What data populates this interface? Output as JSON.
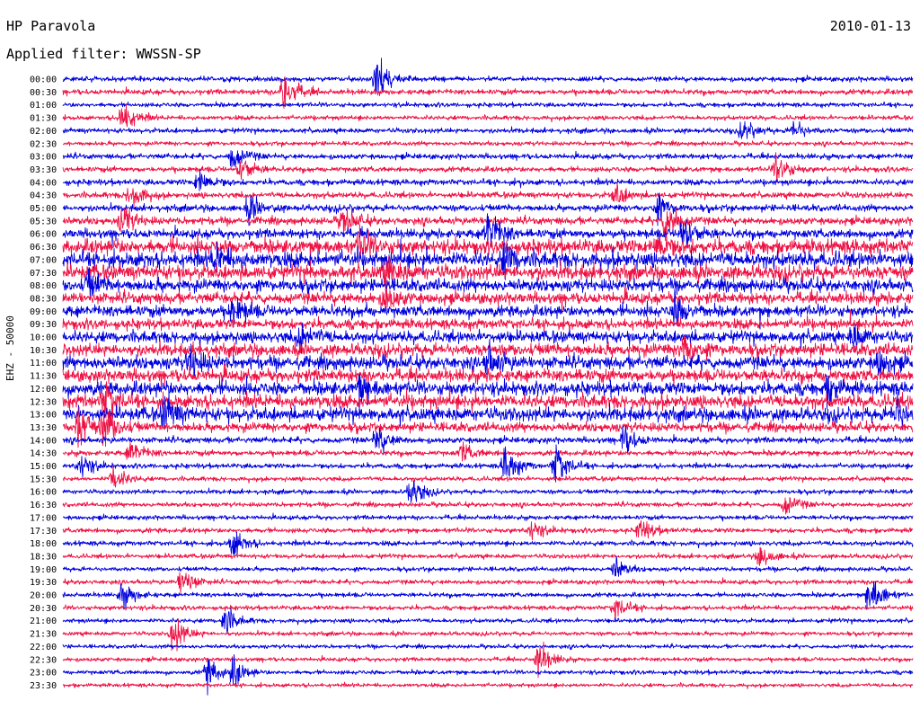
{
  "header": {
    "station": "HP Paravola",
    "date": "2010-01-13",
    "filter": "Applied filter: WWSSN-SP"
  },
  "axis": {
    "ylabel": "EHZ - 50000"
  },
  "colors": {
    "trace_even": "#0000dd",
    "trace_odd": "#ee1144",
    "label": "#000000"
  },
  "chart_data": {
    "type": "seismogram-helicorder",
    "station": "HP Paravola",
    "channel": "EHZ",
    "scale": "50000",
    "date": "2010-01-13",
    "filter": "WWSSN-SP",
    "row_interval_minutes": 30,
    "rows": [
      {
        "label": "00:00",
        "activity": 0.1,
        "events": [
          [
            0.37,
            2.2
          ]
        ]
      },
      {
        "label": "00:30",
        "activity": 0.12,
        "events": [
          [
            0.26,
            2.4
          ]
        ]
      },
      {
        "label": "01:00",
        "activity": 0.08,
        "events": []
      },
      {
        "label": "01:30",
        "activity": 0.08,
        "events": [
          [
            0.07,
            2.0
          ]
        ]
      },
      {
        "label": "02:00",
        "activity": 0.1,
        "events": [
          [
            0.8,
            1.2
          ],
          [
            0.86,
            1.0
          ]
        ]
      },
      {
        "label": "02:30",
        "activity": 0.07,
        "events": []
      },
      {
        "label": "03:00",
        "activity": 0.12,
        "events": [
          [
            0.2,
            1.5
          ]
        ]
      },
      {
        "label": "03:30",
        "activity": 0.12,
        "events": [
          [
            0.84,
            1.8
          ],
          [
            0.21,
            1.3
          ]
        ]
      },
      {
        "label": "04:00",
        "activity": 0.15,
        "events": [
          [
            0.16,
            1.5
          ]
        ]
      },
      {
        "label": "04:30",
        "activity": 0.15,
        "events": [
          [
            0.08,
            1.5
          ],
          [
            0.65,
            1.2
          ]
        ]
      },
      {
        "label": "05:00",
        "activity": 0.18,
        "events": [
          [
            0.22,
            1.4
          ],
          [
            0.7,
            1.3
          ]
        ]
      },
      {
        "label": "05:30",
        "activity": 0.22,
        "events": [
          [
            0.07,
            1.6
          ],
          [
            0.33,
            1.4
          ],
          [
            0.71,
            2.4
          ]
        ]
      },
      {
        "label": "06:00",
        "activity": 0.3,
        "events": [
          [
            0.5,
            2.8
          ],
          [
            0.73,
            1.8
          ]
        ]
      },
      {
        "label": "06:30",
        "activity": 0.55,
        "events": [
          [
            0.35,
            1.6
          ],
          [
            0.7,
            1.5
          ]
        ]
      },
      {
        "label": "07:00",
        "activity": 0.6,
        "events": [
          [
            0.18,
            1.4
          ],
          [
            0.52,
            1.6
          ]
        ]
      },
      {
        "label": "07:30",
        "activity": 0.55,
        "events": [
          [
            0.38,
            1.5
          ]
        ]
      },
      {
        "label": "08:00",
        "activity": 0.45,
        "events": [
          [
            0.03,
            1.3
          ]
        ]
      },
      {
        "label": "08:30",
        "activity": 0.4,
        "events": [
          [
            0.38,
            1.3
          ]
        ]
      },
      {
        "label": "09:00",
        "activity": 0.4,
        "events": [
          [
            0.2,
            1.6
          ],
          [
            0.72,
            1.8
          ]
        ]
      },
      {
        "label": "09:30",
        "activity": 0.35,
        "events": []
      },
      {
        "label": "10:00",
        "activity": 0.42,
        "events": [
          [
            0.28,
            1.5
          ],
          [
            0.93,
            1.3
          ]
        ]
      },
      {
        "label": "10:30",
        "activity": 0.45,
        "events": [
          [
            0.73,
            1.6
          ]
        ]
      },
      {
        "label": "11:00",
        "activity": 0.48,
        "events": [
          [
            0.15,
            1.6
          ],
          [
            0.5,
            1.6
          ],
          [
            0.96,
            1.4
          ]
        ]
      },
      {
        "label": "11:30",
        "activity": 0.45,
        "events": []
      },
      {
        "label": "12:00",
        "activity": 0.5,
        "events": [
          [
            0.35,
            1.5
          ],
          [
            0.9,
            1.4
          ]
        ]
      },
      {
        "label": "12:30",
        "activity": 0.5,
        "events": [
          [
            0.05,
            2.0
          ]
        ]
      },
      {
        "label": "13:00",
        "activity": 0.5,
        "events": [
          [
            0.12,
            1.8
          ],
          [
            0.98,
            1.6
          ]
        ]
      },
      {
        "label": "13:30",
        "activity": 0.3,
        "events": [
          [
            0.02,
            2.6
          ],
          [
            0.05,
            2.4
          ]
        ]
      },
      {
        "label": "14:00",
        "activity": 0.15,
        "events": [
          [
            0.37,
            1.6
          ],
          [
            0.66,
            1.6
          ]
        ]
      },
      {
        "label": "14:30",
        "activity": 0.12,
        "events": [
          [
            0.08,
            1.4
          ],
          [
            0.47,
            1.0
          ]
        ]
      },
      {
        "label": "15:00",
        "activity": 0.1,
        "events": [
          [
            0.02,
            1.5
          ],
          [
            0.52,
            2.2
          ],
          [
            0.58,
            2.4
          ]
        ]
      },
      {
        "label": "15:30",
        "activity": 0.08,
        "events": [
          [
            0.06,
            1.4
          ]
        ]
      },
      {
        "label": "16:00",
        "activity": 0.08,
        "events": [
          [
            0.41,
            1.5
          ]
        ]
      },
      {
        "label": "16:30",
        "activity": 0.08,
        "events": [
          [
            0.85,
            1.3
          ]
        ]
      },
      {
        "label": "17:00",
        "activity": 0.08,
        "events": []
      },
      {
        "label": "17:30",
        "activity": 0.1,
        "events": [
          [
            0.55,
            1.2
          ],
          [
            0.68,
            1.3
          ]
        ]
      },
      {
        "label": "18:00",
        "activity": 0.1,
        "events": [
          [
            0.2,
            1.5
          ]
        ]
      },
      {
        "label": "18:30",
        "activity": 0.08,
        "events": [
          [
            0.82,
            1.2
          ]
        ]
      },
      {
        "label": "19:00",
        "activity": 0.07,
        "events": [
          [
            0.65,
            1.1
          ]
        ]
      },
      {
        "label": "19:30",
        "activity": 0.08,
        "events": [
          [
            0.14,
            1.6
          ]
        ]
      },
      {
        "label": "20:00",
        "activity": 0.08,
        "events": [
          [
            0.07,
            1.4
          ],
          [
            0.95,
            2.4
          ]
        ]
      },
      {
        "label": "20:30",
        "activity": 0.08,
        "events": [
          [
            0.65,
            1.3
          ]
        ]
      },
      {
        "label": "21:00",
        "activity": 0.07,
        "events": [
          [
            0.19,
            1.6
          ]
        ]
      },
      {
        "label": "21:30",
        "activity": 0.06,
        "events": [
          [
            0.13,
            2.0
          ]
        ]
      },
      {
        "label": "22:00",
        "activity": 0.05,
        "events": []
      },
      {
        "label": "22:30",
        "activity": 0.06,
        "events": [
          [
            0.56,
            1.8
          ]
        ]
      },
      {
        "label": "23:00",
        "activity": 0.07,
        "events": [
          [
            0.17,
            1.8
          ],
          [
            0.2,
            1.4
          ]
        ]
      },
      {
        "label": "23:30",
        "activity": 0.05,
        "events": []
      }
    ]
  }
}
